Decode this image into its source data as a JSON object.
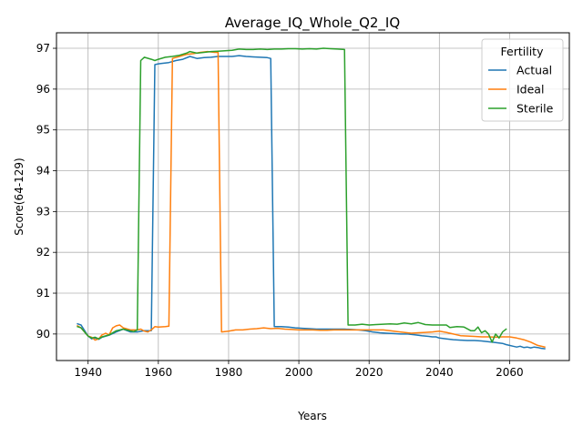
{
  "chart_data": {
    "type": "line",
    "title": "Average_IQ_Whole_Q2_IQ",
    "xlabel": "Years",
    "ylabel": "Score(64-129)",
    "xlim": [
      1931,
      2077
    ],
    "ylim": [
      89.35,
      97.38
    ],
    "xticks": [
      1940,
      1960,
      1980,
      2000,
      2020,
      2040,
      2060
    ],
    "yticks": [
      90,
      91,
      92,
      93,
      94,
      95,
      96,
      97
    ],
    "grid": true,
    "legend": {
      "title": "Fertility",
      "placement": "top-right"
    },
    "series": [
      {
        "name": "Actual",
        "color": "#1f77b4",
        "points": [
          [
            1937,
            90.25
          ],
          [
            1938,
            90.22
          ],
          [
            1940,
            89.95
          ],
          [
            1941,
            89.88
          ],
          [
            1942,
            89.9
          ],
          [
            1943,
            89.87
          ],
          [
            1944,
            89.92
          ],
          [
            1946,
            89.97
          ],
          [
            1948,
            90.05
          ],
          [
            1950,
            90.12
          ],
          [
            1952,
            90.05
          ],
          [
            1954,
            90.05
          ],
          [
            1956,
            90.08
          ],
          [
            1958,
            90.08
          ],
          [
            1959,
            96.6
          ],
          [
            1960,
            96.62
          ],
          [
            1961,
            96.63
          ],
          [
            1963,
            96.65
          ],
          [
            1965,
            96.7
          ],
          [
            1967,
            96.73
          ],
          [
            1969,
            96.8
          ],
          [
            1971,
            96.75
          ],
          [
            1973,
            96.77
          ],
          [
            1975,
            96.78
          ],
          [
            1977,
            96.8
          ],
          [
            1979,
            96.8
          ],
          [
            1981,
            96.8
          ],
          [
            1983,
            96.82
          ],
          [
            1985,
            96.8
          ],
          [
            1987,
            96.79
          ],
          [
            1989,
            96.78
          ],
          [
            1991,
            96.77
          ],
          [
            1992,
            96.75
          ],
          [
            1993,
            90.18
          ],
          [
            1995,
            90.18
          ],
          [
            1997,
            90.17
          ],
          [
            1999,
            90.15
          ],
          [
            2001,
            90.14
          ],
          [
            2003,
            90.13
          ],
          [
            2005,
            90.12
          ],
          [
            2007,
            90.12
          ],
          [
            2009,
            90.12
          ],
          [
            2011,
            90.12
          ],
          [
            2013,
            90.12
          ],
          [
            2015,
            90.11
          ],
          [
            2017,
            90.1
          ],
          [
            2019,
            90.08
          ],
          [
            2021,
            90.05
          ],
          [
            2023,
            90.03
          ],
          [
            2025,
            90.02
          ],
          [
            2027,
            90.01
          ],
          [
            2029,
            90.0
          ],
          [
            2031,
            90.0
          ],
          [
            2033,
            89.98
          ],
          [
            2034,
            89.97
          ],
          [
            2035,
            89.96
          ],
          [
            2036,
            89.95
          ],
          [
            2037,
            89.94
          ],
          [
            2038,
            89.93
          ],
          [
            2039,
            89.93
          ],
          [
            2040,
            89.9
          ],
          [
            2042,
            89.88
          ],
          [
            2044,
            89.86
          ],
          [
            2046,
            89.85
          ],
          [
            2048,
            89.84
          ],
          [
            2050,
            89.84
          ],
          [
            2052,
            89.83
          ],
          [
            2054,
            89.81
          ],
          [
            2056,
            89.79
          ],
          [
            2058,
            89.77
          ],
          [
            2059,
            89.74
          ],
          [
            2060,
            89.72
          ],
          [
            2061,
            89.7
          ],
          [
            2062,
            89.68
          ],
          [
            2063,
            89.7
          ],
          [
            2064,
            89.67
          ],
          [
            2065,
            89.68
          ],
          [
            2066,
            89.66
          ],
          [
            2067,
            89.68
          ],
          [
            2068,
            89.67
          ],
          [
            2069,
            89.65
          ],
          [
            2070,
            89.64
          ]
        ]
      },
      {
        "name": "Ideal",
        "color": "#ff7f0e",
        "points": [
          [
            1937,
            90.2
          ],
          [
            1938,
            90.15
          ],
          [
            1940,
            89.95
          ],
          [
            1941,
            89.92
          ],
          [
            1942,
            89.85
          ],
          [
            1943,
            89.88
          ],
          [
            1944,
            89.98
          ],
          [
            1945,
            90.02
          ],
          [
            1946,
            89.98
          ],
          [
            1947,
            90.15
          ],
          [
            1948,
            90.2
          ],
          [
            1949,
            90.22
          ],
          [
            1950,
            90.15
          ],
          [
            1952,
            90.1
          ],
          [
            1954,
            90.1
          ],
          [
            1955,
            90.12
          ],
          [
            1956,
            90.07
          ],
          [
            1957,
            90.05
          ],
          [
            1958,
            90.1
          ],
          [
            1959,
            90.18
          ],
          [
            1960,
            90.17
          ],
          [
            1962,
            90.18
          ],
          [
            1963,
            90.19
          ],
          [
            1964,
            96.75
          ],
          [
            1966,
            96.8
          ],
          [
            1968,
            96.85
          ],
          [
            1970,
            96.87
          ],
          [
            1972,
            96.9
          ],
          [
            1974,
            96.92
          ],
          [
            1976,
            96.9
          ],
          [
            1977,
            96.9
          ],
          [
            1978,
            90.05
          ],
          [
            1980,
            90.07
          ],
          [
            1982,
            90.1
          ],
          [
            1984,
            90.1
          ],
          [
            1986,
            90.12
          ],
          [
            1988,
            90.13
          ],
          [
            1990,
            90.15
          ],
          [
            1992,
            90.13
          ],
          [
            1994,
            90.14
          ],
          [
            1996,
            90.12
          ],
          [
            1998,
            90.11
          ],
          [
            2000,
            90.1
          ],
          [
            2002,
            90.1
          ],
          [
            2004,
            90.1
          ],
          [
            2006,
            90.09
          ],
          [
            2008,
            90.09
          ],
          [
            2010,
            90.1
          ],
          [
            2012,
            90.1
          ],
          [
            2014,
            90.1
          ],
          [
            2016,
            90.1
          ],
          [
            2018,
            90.1
          ],
          [
            2020,
            90.1
          ],
          [
            2022,
            90.1
          ],
          [
            2024,
            90.1
          ],
          [
            2026,
            90.08
          ],
          [
            2028,
            90.06
          ],
          [
            2030,
            90.04
          ],
          [
            2032,
            90.02
          ],
          [
            2034,
            90.03
          ],
          [
            2036,
            90.04
          ],
          [
            2038,
            90.05
          ],
          [
            2040,
            90.07
          ],
          [
            2042,
            90.04
          ],
          [
            2044,
            90.0
          ],
          [
            2046,
            89.96
          ],
          [
            2048,
            89.95
          ],
          [
            2050,
            89.94
          ],
          [
            2052,
            89.93
          ],
          [
            2054,
            89.93
          ],
          [
            2056,
            89.92
          ],
          [
            2058,
            89.93
          ],
          [
            2060,
            89.93
          ],
          [
            2062,
            89.9
          ],
          [
            2064,
            89.86
          ],
          [
            2066,
            89.8
          ],
          [
            2068,
            89.72
          ],
          [
            2070,
            89.68
          ]
        ]
      },
      {
        "name": "Sterile",
        "color": "#2ca02c",
        "points": [
          [
            1937,
            90.18
          ],
          [
            1938,
            90.15
          ],
          [
            1939,
            90.05
          ],
          [
            1940,
            89.95
          ],
          [
            1941,
            89.9
          ],
          [
            1942,
            89.92
          ],
          [
            1943,
            89.88
          ],
          [
            1944,
            89.93
          ],
          [
            1946,
            89.98
          ],
          [
            1948,
            90.08
          ],
          [
            1950,
            90.12
          ],
          [
            1952,
            90.08
          ],
          [
            1953,
            90.06
          ],
          [
            1954,
            90.1
          ],
          [
            1955,
            96.7
          ],
          [
            1956,
            96.78
          ],
          [
            1958,
            96.73
          ],
          [
            1959,
            96.7
          ],
          [
            1960,
            96.73
          ],
          [
            1962,
            96.78
          ],
          [
            1964,
            96.8
          ],
          [
            1966,
            96.83
          ],
          [
            1968,
            96.88
          ],
          [
            1969,
            96.92
          ],
          [
            1971,
            96.88
          ],
          [
            1973,
            96.9
          ],
          [
            1975,
            96.92
          ],
          [
            1977,
            96.93
          ],
          [
            1979,
            96.94
          ],
          [
            1981,
            96.95
          ],
          [
            1983,
            96.98
          ],
          [
            1985,
            96.97
          ],
          [
            1987,
            96.97
          ],
          [
            1989,
            96.98
          ],
          [
            1991,
            96.97
          ],
          [
            1993,
            96.98
          ],
          [
            1995,
            96.98
          ],
          [
            1997,
            96.99
          ],
          [
            1999,
            96.99
          ],
          [
            2001,
            96.98
          ],
          [
            2003,
            96.99
          ],
          [
            2005,
            96.98
          ],
          [
            2007,
            97.0
          ],
          [
            2009,
            96.99
          ],
          [
            2011,
            96.98
          ],
          [
            2013,
            96.97
          ],
          [
            2014,
            90.22
          ],
          [
            2016,
            90.22
          ],
          [
            2018,
            90.24
          ],
          [
            2020,
            90.22
          ],
          [
            2022,
            90.23
          ],
          [
            2024,
            90.24
          ],
          [
            2026,
            90.25
          ],
          [
            2028,
            90.24
          ],
          [
            2030,
            90.27
          ],
          [
            2032,
            90.25
          ],
          [
            2034,
            90.28
          ],
          [
            2036,
            90.23
          ],
          [
            2038,
            90.22
          ],
          [
            2040,
            90.22
          ],
          [
            2042,
            90.22
          ],
          [
            2043,
            90.16
          ],
          [
            2045,
            90.18
          ],
          [
            2047,
            90.17
          ],
          [
            2049,
            90.08
          ],
          [
            2050,
            90.08
          ],
          [
            2051,
            90.17
          ],
          [
            2052,
            90.03
          ],
          [
            2053,
            90.08
          ],
          [
            2054,
            90.0
          ],
          [
            2055,
            89.8
          ],
          [
            2056,
            90.0
          ],
          [
            2057,
            89.9
          ],
          [
            2058,
            90.05
          ],
          [
            2059,
            90.12
          ]
        ]
      }
    ]
  }
}
